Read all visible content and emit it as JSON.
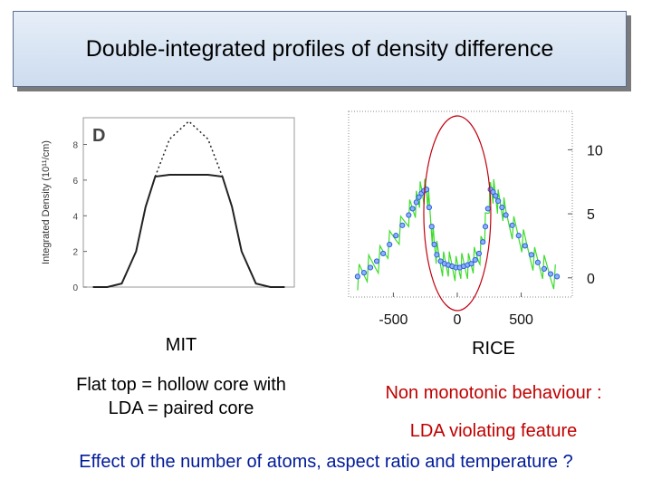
{
  "title": "Double-integrated profiles of density difference",
  "chart_data": [
    {
      "type": "line",
      "panel_letter": "D",
      "ylabel": "Integrated Density (10¹¹/cm)",
      "yticks": [
        "0",
        "2",
        "4",
        "6",
        "8"
      ],
      "ylim": [
        0,
        9.5
      ],
      "x": [
        -1.0,
        -0.85,
        -0.7,
        -0.55,
        -0.45,
        -0.35,
        -0.2,
        0,
        0.2,
        0.35,
        0.45,
        0.55,
        0.7,
        0.85,
        1.0
      ],
      "series": [
        {
          "style": "solid",
          "values": [
            0,
            0,
            0.2,
            2.0,
            4.5,
            6.2,
            6.3,
            6.3,
            6.3,
            6.2,
            4.5,
            2.0,
            0.2,
            0,
            0
          ]
        },
        {
          "style": "dotted",
          "values": [
            null,
            null,
            null,
            null,
            null,
            6.2,
            8.3,
            9.3,
            8.3,
            6.2,
            null,
            null,
            null,
            null,
            null
          ]
        }
      ],
      "caption_label": "MIT",
      "caption_lines": [
        "Flat top = hollow core with",
        "LDA = paired core"
      ]
    },
    {
      "type": "scatter",
      "xticks": [
        "-500",
        "0",
        "500"
      ],
      "yticks": [
        "0",
        "5",
        "10"
      ],
      "xlim": [
        -850,
        900
      ],
      "ylim": [
        -1.5,
        13
      ],
      "x": [
        -780,
        -730,
        -680,
        -630,
        -580,
        -530,
        -480,
        -430,
        -380,
        -350,
        -320,
        -300,
        -280,
        -260,
        -240,
        -220,
        -200,
        -180,
        -160,
        -130,
        -100,
        -70,
        -40,
        -10,
        20,
        50,
        80,
        110,
        140,
        170,
        200,
        220,
        240,
        260,
        280,
        300,
        320,
        350,
        380,
        430,
        480,
        530,
        580,
        630,
        680,
        730,
        780
      ],
      "y": [
        0.1,
        0.4,
        0.8,
        1.3,
        1.9,
        2.6,
        3.3,
        4.1,
        4.9,
        5.4,
        5.9,
        6.3,
        6.6,
        6.8,
        6.9,
        5.5,
        4.0,
        2.6,
        1.8,
        1.3,
        1.1,
        1.0,
        0.9,
        0.8,
        0.8,
        0.9,
        1.0,
        1.1,
        1.4,
        1.9,
        2.8,
        4.0,
        5.4,
        6.9,
        6.7,
        6.4,
        6.0,
        5.5,
        4.9,
        4.1,
        3.3,
        2.5,
        1.8,
        1.2,
        0.7,
        0.3,
        0.1
      ],
      "colors": {
        "markers": "#2b5fd9",
        "noise": "#3ddc2a",
        "ellipse": "#c0000f"
      },
      "caption_label": "RICE",
      "caption_lines": [
        "Non monotonic behaviour :",
        "LDA violating feature"
      ],
      "caption_color": "#c00000"
    }
  ],
  "bottom_text": "Effect of the number of atoms, aspect ratio and temperature ?",
  "bottom_color": "#001a99"
}
